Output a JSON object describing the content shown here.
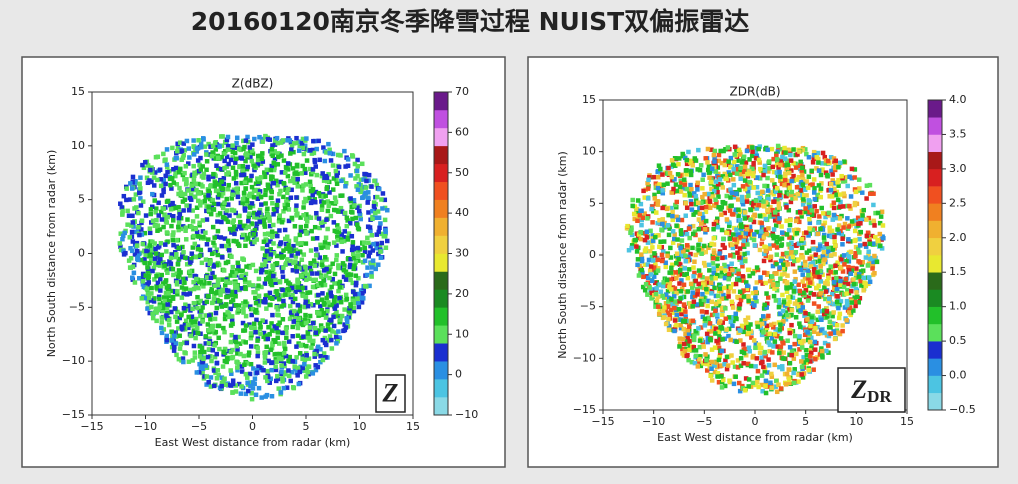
{
  "slide_title": "20160120南京冬季降雪过程 NUIST双偏振雷达",
  "chart_data": [
    {
      "type": "ppi",
      "title": "Z(dBZ)",
      "x_label": "East West distance from radar (km)",
      "y_label": "North South distance from radar (km)",
      "xlim": [
        -15,
        15
      ],
      "ylim": [
        -15,
        15
      ],
      "xticks": [
        -15,
        -10,
        -5,
        0,
        5,
        10,
        15
      ],
      "yticks": [
        -15,
        -10,
        -5,
        0,
        5,
        10,
        15
      ],
      "colorbar": {
        "lim": [
          -10,
          70
        ],
        "ticks": [
          -10,
          0,
          10,
          20,
          30,
          40,
          50,
          60,
          70
        ],
        "colors": [
          "#8ad9e6",
          "#4cc4e2",
          "#2a8fe2",
          "#1a2fd0",
          "#5be05b",
          "#22c02a",
          "#1a8a22",
          "#2a6a1a",
          "#e8e830",
          "#f0d040",
          "#f0b030",
          "#f08020",
          "#f05020",
          "#d82020",
          "#a81818",
          "#f0a0f0",
          "#c050e0",
          "#6a1a8a"
        ]
      },
      "annotation": {
        "main": "Z",
        "sub": ""
      }
    },
    {
      "type": "ppi",
      "title": "ZDR(dB)",
      "x_label": "East West distance from radar (km)",
      "y_label": "North South distance from radar (km)",
      "xlim": [
        -15,
        15
      ],
      "ylim": [
        -15,
        15
      ],
      "xticks": [
        -15,
        -10,
        -5,
        0,
        5,
        10,
        15
      ],
      "yticks": [
        -15,
        -10,
        -5,
        0,
        5,
        10,
        15
      ],
      "colorbar": {
        "lim": [
          -0.5,
          4
        ],
        "ticks": [
          {
            "value": -0.5,
            "label": "−0.5"
          },
          {
            "value": 0,
            "label": "0.0"
          },
          0.5,
          {
            "value": 1,
            "label": "1.0"
          },
          1.5,
          {
            "value": 2,
            "label": "2.0"
          },
          2.5,
          {
            "value": 3,
            "label": "3.0"
          },
          3.5,
          {
            "value": 4,
            "label": "4.0"
          }
        ],
        "colors": [
          "#8ad9e6",
          "#4cc4e2",
          "#2a8fe2",
          "#1a2fd0",
          "#5be05b",
          "#22c02a",
          "#1a8a22",
          "#2a6a1a",
          "#e8e830",
          "#f0d040",
          "#f0b030",
          "#f08020",
          "#f05020",
          "#d82020",
          "#a81818",
          "#f0a0f0",
          "#c050e0",
          "#6a1a8a"
        ]
      },
      "annotation": {
        "main": "Z",
        "sub": "DR"
      }
    }
  ]
}
